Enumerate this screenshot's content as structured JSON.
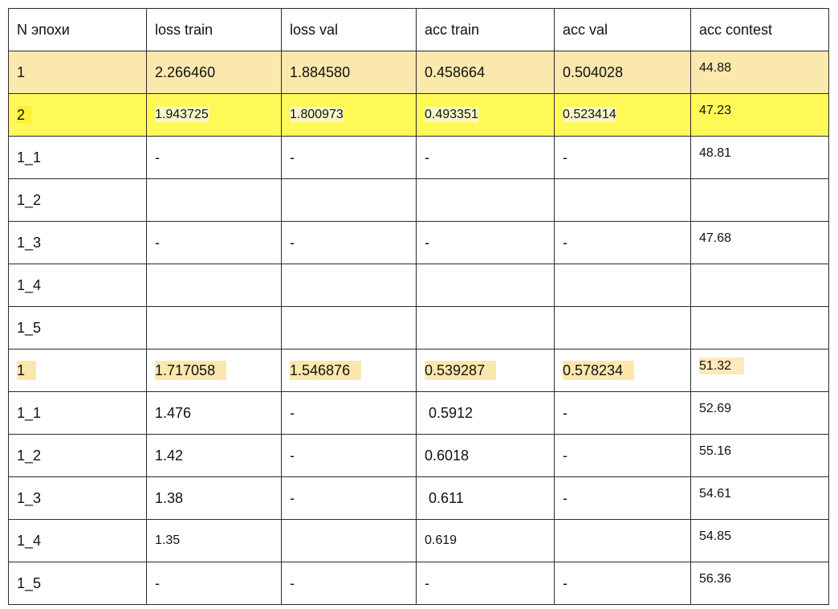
{
  "headers": [
    "N эпохи",
    "loss train",
    "loss val",
    "acc train",
    "acc val",
    "acc contest"
  ],
  "rows": [
    [
      "1",
      "2.266460",
      "1.884580",
      "0.458664",
      "0.504028",
      "44.88"
    ],
    [
      "2",
      "1.943725",
      "1.800973",
      "0.493351",
      "0.523414",
      "47.23"
    ],
    [
      "1_1",
      "-",
      "-",
      "-",
      "-",
      "48.81"
    ],
    [
      "1_2",
      "",
      "",
      "",
      "",
      ""
    ],
    [
      "1_3",
      "-",
      "-",
      "-",
      "-",
      "47.68"
    ],
    [
      "1_4",
      "",
      "",
      "",
      "",
      ""
    ],
    [
      "1_5",
      "",
      "",
      "",
      "",
      ""
    ],
    [
      "1",
      "1.717058",
      "1.546876",
      "0.539287",
      "0.578234",
      "51.32"
    ],
    [
      "1_1",
      "1.476",
      "-",
      " 0.5912",
      "-",
      "52.69"
    ],
    [
      "1_2",
      "1.42",
      "-",
      "0.6018",
      "-",
      "55.16"
    ],
    [
      "1_3",
      "1.38",
      "-",
      " 0.611",
      "-",
      "54.61"
    ],
    [
      "1_4",
      "1.35",
      "",
      "0.619",
      "",
      "54.85"
    ],
    [
      "1_5",
      "-",
      "-",
      "-",
      "-",
      "56.36"
    ]
  ],
  "colors": {
    "row_highlight_orange": "#fbe8ad",
    "row_highlight_yellow": "#fff958"
  }
}
